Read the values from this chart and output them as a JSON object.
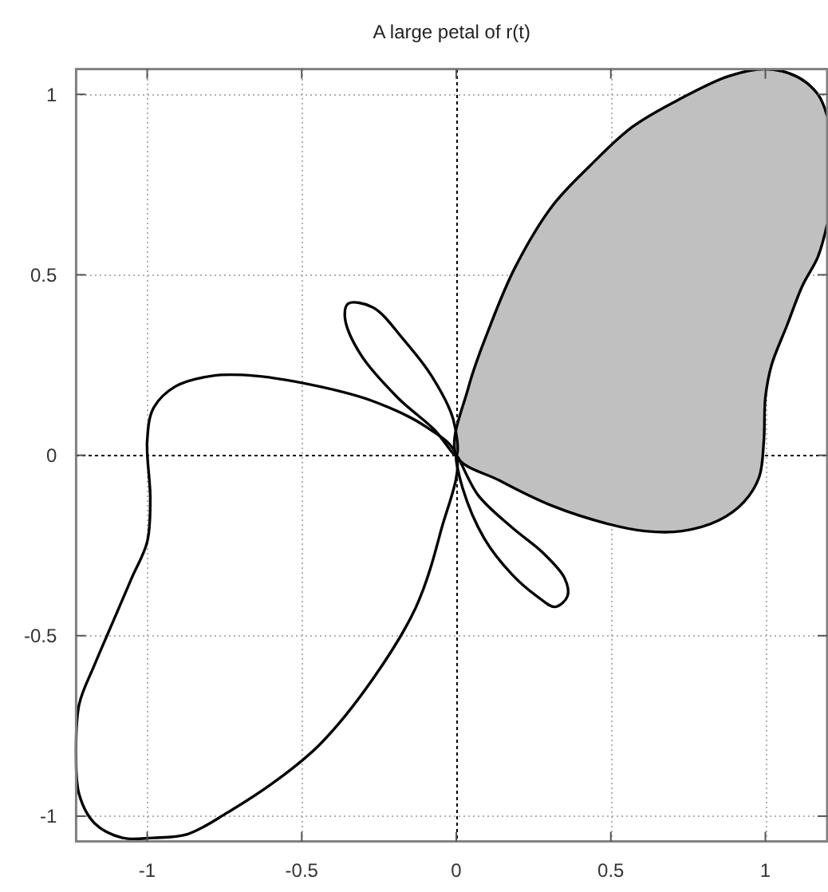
{
  "chart_data": {
    "type": "area",
    "title": "A large petal of r(t)",
    "xlim": [
      -1.23,
      1.2
    ],
    "ylim": [
      -1.07,
      1.07
    ],
    "xticks": [
      -1,
      -0.5,
      0,
      0.5,
      1
    ],
    "yticks": [
      -1,
      -0.5,
      0,
      0.5,
      1
    ],
    "grid": true,
    "series": [
      {
        "color": "#c0c0c0",
        "x": [
          1.2,
          1.17,
          1.12,
          1.07,
          1.02,
          1.0,
          0.995,
          0.98,
          0.93,
          0.85,
          0.73,
          0.61,
          0.49,
          0.31,
          0.14,
          0,
          0.04,
          0.11,
          0.19,
          0.31,
          0.43,
          0.57,
          0.73,
          0.88,
          1.0,
          1.1,
          1.17,
          1.2
        ],
        "values": [
          0.64,
          0.55,
          0.47,
          0.36,
          0.25,
          0.16,
          0.04,
          -0.06,
          -0.13,
          -0.18,
          -0.21,
          -0.21,
          -0.19,
          -0.14,
          -0.07,
          0,
          0.19,
          0.36,
          0.52,
          0.69,
          0.8,
          0.91,
          0.99,
          1.05,
          1.07,
          1.05,
          1.0,
          0.94
        ]
      }
    ]
  }
}
